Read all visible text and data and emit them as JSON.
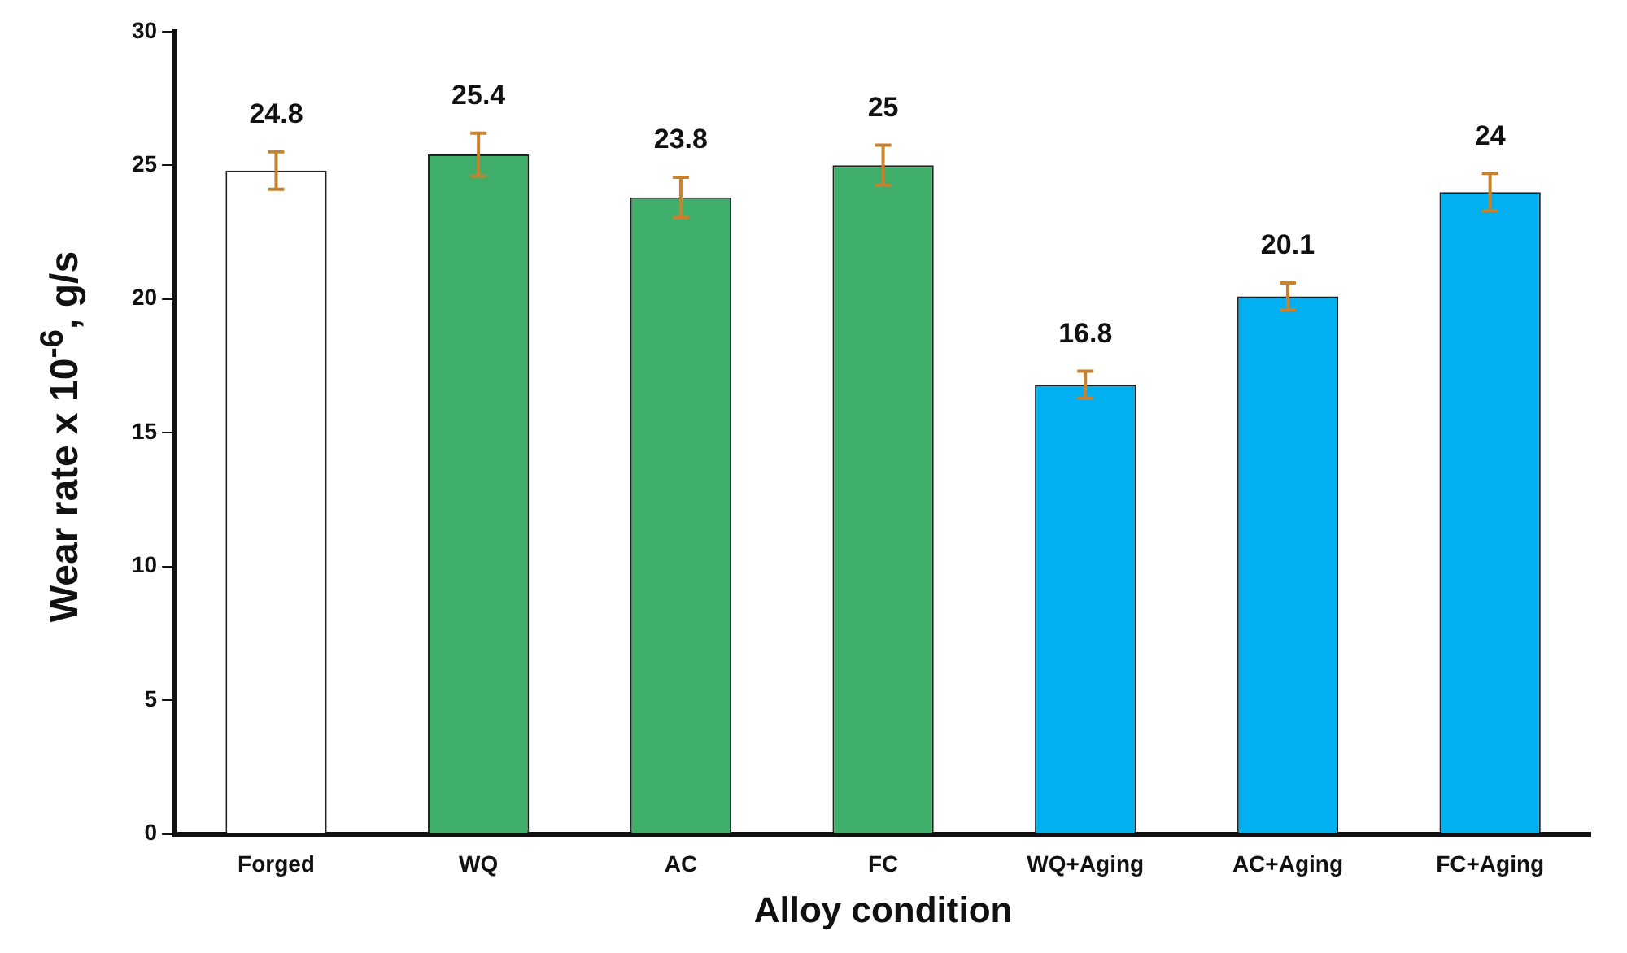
{
  "chart_data": {
    "type": "bar",
    "xlabel": "Alloy condition",
    "ylabel": "Wear rate x 10$^{-6}$, g/s",
    "categories": [
      "Forged",
      "WQ",
      "AC",
      "FC",
      "WQ+Aging",
      "AC+Aging",
      "FC+Aging"
    ],
    "values": [
      24.8,
      25.4,
      23.8,
      25,
      16.8,
      20.1,
      24
    ],
    "colors": [
      "#ffffff",
      "#3fae6a",
      "#3fae6a",
      "#3fae6a",
      "#00b0f0",
      "#00b0f0",
      "#00b0f0"
    ],
    "errors": [
      0.7,
      0.8,
      0.75,
      0.75,
      0.5,
      0.5,
      0.7
    ],
    "ylim": [
      0,
      30
    ],
    "yticks": [
      0,
      5,
      10,
      15,
      20,
      25,
      30
    ],
    "grid": false,
    "data_labels": true
  }
}
